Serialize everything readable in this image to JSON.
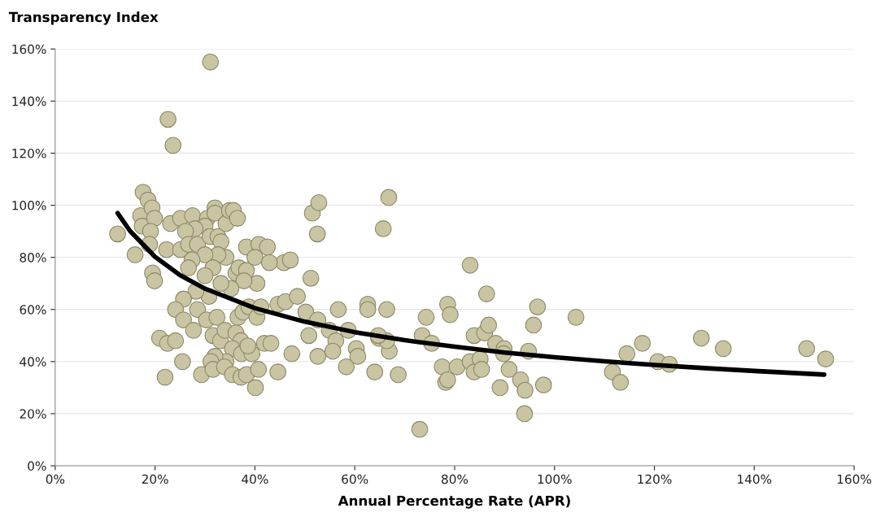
{
  "chart_data": {
    "type": "scatter",
    "title": "Transparency Index",
    "xlabel": "Annual Percentage Rate (APR)",
    "xlim": [
      0,
      160
    ],
    "ylim": [
      0,
      160
    ],
    "xticks": [
      {
        "value": 0,
        "label": "0%"
      },
      {
        "value": 20,
        "label": "20%"
      },
      {
        "value": 40,
        "label": "40%"
      },
      {
        "value": 60,
        "label": "60%"
      },
      {
        "value": 80,
        "label": "80%"
      },
      {
        "value": 100,
        "label": "100%"
      },
      {
        "value": 120,
        "label": "120%"
      },
      {
        "value": 140,
        "label": "140%"
      },
      {
        "value": 160,
        "label": "160%"
      }
    ],
    "yticks": [
      {
        "value": 0,
        "label": "0%"
      },
      {
        "value": 20,
        "label": "20%"
      },
      {
        "value": 40,
        "label": "40%"
      },
      {
        "value": 60,
        "label": "60%"
      },
      {
        "value": 80,
        "label": "80%"
      },
      {
        "value": 100,
        "label": "100%"
      },
      {
        "value": 120,
        "label": "120%"
      },
      {
        "value": 140,
        "label": "140%"
      },
      {
        "value": 160,
        "label": "160%"
      }
    ],
    "grid": "y",
    "marker": "circle",
    "series": [
      {
        "color": "#c9c5a2",
        "x": [
          31.1,
          22.6,
          23.6,
          12.5,
          16.0,
          17.6,
          18.6,
          17.1,
          19.4,
          17.4,
          19.9,
          19.1,
          18.9,
          19.5,
          19.9,
          20.9,
          22.0,
          22.5,
          24.1,
          25.5,
          22.3,
          23.1,
          25.1,
          27.5,
          30.5,
          30.0,
          28.0,
          26.1,
          25.1,
          26.7,
          28.5,
          31.0,
          32.0,
          32.0,
          32.6,
          33.2,
          34.2,
          34.9,
          35.7,
          36.5,
          34.2,
          32.6,
          30.0,
          27.4,
          26.7,
          31.6,
          30.0,
          36.2,
          36.8,
          38.3,
          38.3,
          40.8,
          40.0,
          40.4,
          37.8,
          35.2,
          33.2,
          30.8,
          28.2,
          25.7,
          24.1,
          25.7,
          28.5,
          27.7,
          30.3,
          32.4,
          31.6,
          33.1,
          34.0,
          36.6,
          37.6,
          38.8,
          36.2,
          37.2,
          35.5,
          37.3,
          39.4,
          34.2,
          32.0,
          31.2,
          29.3,
          31.6,
          33.9,
          35.5,
          37.2,
          38.3,
          38.6,
          40.4,
          41.2,
          41.9,
          43.2,
          40.7,
          40.1,
          44.6,
          44.6,
          46.1,
          45.8,
          47.1,
          42.5,
          42.9,
          47.4,
          48.5,
          50.2,
          50.8,
          52.6,
          51.5,
          52.8,
          52.5,
          51.2,
          52.6,
          54.9,
          56.7,
          56.2,
          55.6,
          58.3,
          58.7,
          60.3,
          60.6,
          62.6,
          62.6,
          64.0,
          64.8,
          65.7,
          66.8,
          66.4,
          66.9,
          68.7,
          66.4,
          64.7,
          73.0,
          73.5,
          74.3,
          75.4,
          77.5,
          78.2,
          78.6,
          78.6,
          79.1,
          80.5,
          83.1,
          83.1,
          83.9,
          83.9,
          85.1,
          85.4,
          86.0,
          86.4,
          86.8,
          88.2,
          89.1,
          89.9,
          89.8,
          90.9,
          93.2,
          94.1,
          94.0,
          94.8,
          95.8,
          96.6,
          97.8,
          104.3,
          111.6,
          113.2,
          114.5,
          117.6,
          120.7,
          123.0,
          129.4,
          133.8,
          150.5,
          154.3
        ],
        "values": [
          155,
          133,
          123,
          89,
          81,
          105,
          102,
          96,
          99,
          92,
          95,
          90,
          85,
          74,
          71,
          49,
          34,
          47,
          48,
          40,
          83,
          93,
          95,
          96,
          95,
          92,
          91,
          90,
          83,
          85,
          85,
          88,
          99,
          97,
          88,
          86,
          93,
          98,
          98,
          95,
          80,
          81,
          81,
          79,
          76,
          76,
          73,
          74,
          76,
          75,
          84,
          85,
          80,
          70,
          71,
          68,
          70,
          65,
          67,
          64,
          60,
          56,
          60,
          52,
          56,
          57,
          50,
          48,
          52,
          57,
          59,
          61,
          51,
          48,
          45,
          43,
          43,
          40,
          42,
          40,
          35,
          37,
          38,
          35,
          34,
          35,
          46,
          57,
          61,
          47,
          47,
          37,
          30,
          36,
          62,
          63,
          78,
          79,
          84,
          78,
          43,
          65,
          59,
          50,
          56,
          97,
          101,
          89,
          72,
          42,
          52,
          60,
          48,
          44,
          38,
          52,
          45,
          42,
          62,
          60,
          36,
          49,
          91,
          103,
          60,
          44,
          35,
          48,
          50,
          14,
          50,
          57,
          47,
          38,
          32,
          33,
          62,
          58,
          38,
          77,
          40,
          50,
          36,
          41,
          37,
          51,
          66,
          54,
          47,
          30,
          45,
          43,
          37,
          33,
          29,
          20,
          44,
          54,
          61,
          31,
          57,
          36,
          32,
          43,
          47,
          40,
          39,
          49,
          45,
          45,
          41
        ]
      },
      {
        "type": "line",
        "color": "#000000",
        "marker": "none",
        "x": [
          12.5,
          15,
          20,
          25,
          30,
          40,
          50,
          60,
          70,
          80,
          90,
          100,
          110,
          120,
          130,
          140,
          154
        ],
        "values": [
          97,
          90.1,
          80.2,
          73.2,
          68.0,
          60.5,
          55.3,
          51.3,
          48.2,
          45.7,
          43.5,
          41.7,
          40.1,
          38.7,
          37.5,
          36.4,
          35.0
        ]
      }
    ]
  }
}
